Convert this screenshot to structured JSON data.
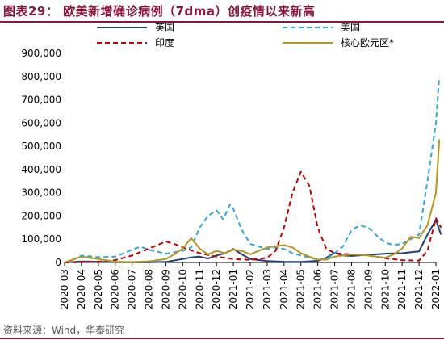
{
  "title": "图表29：   欧美新增确诊病例（7dma）创疫情以来新高",
  "source": "资料来源：Wind，华泰研究",
  "chart_data": {
    "type": "line",
    "x": [
      "2020-03",
      "2020-04",
      "2020-05",
      "2020-06",
      "2020-07",
      "2020-08",
      "2020-09",
      "2020-10",
      "2020-11",
      "2020-12",
      "2021-01",
      "2021-02",
      "2021-03",
      "2021-04",
      "2021-05",
      "2021-06",
      "2021-07",
      "2021-08",
      "2021-09",
      "2021-10",
      "2021-11",
      "2021-12",
      "2022-01"
    ],
    "ylim": [
      0,
      900000
    ],
    "yticks": [
      "0",
      "100,000",
      "200,000",
      "300,000",
      "400,000",
      "500,000",
      "600,000",
      "700,000",
      "800,000",
      "900,000"
    ],
    "grid": false,
    "legend_position": "top",
    "series": [
      {
        "name": "英国",
        "color": "#1f3e7a",
        "style": "solid",
        "points": [
          [
            0,
            0
          ],
          [
            1,
            4500
          ],
          [
            2,
            3000
          ],
          [
            3,
            1500
          ],
          [
            4,
            600
          ],
          [
            5,
            800
          ],
          [
            6,
            2500
          ],
          [
            7,
            15000
          ],
          [
            7.5,
            22000
          ],
          [
            8,
            25000
          ],
          [
            8.5,
            17000
          ],
          [
            9,
            30000
          ],
          [
            9.5,
            40000
          ],
          [
            10,
            58000
          ],
          [
            10.5,
            35000
          ],
          [
            11,
            15000
          ],
          [
            12,
            6000
          ],
          [
            13,
            3000
          ],
          [
            14,
            2500
          ],
          [
            15,
            7000
          ],
          [
            15.5,
            20000
          ],
          [
            16,
            42000
          ],
          [
            16.5,
            30000
          ],
          [
            17,
            28000
          ],
          [
            18,
            33000
          ],
          [
            19,
            38000
          ],
          [
            20,
            40000
          ],
          [
            21,
            48000
          ],
          [
            21.5,
            120000
          ],
          [
            22,
            183000
          ],
          [
            22.3,
            120000
          ]
        ]
      },
      {
        "name": "美国",
        "color": "#33a6d9",
        "style": "dashed",
        "points": [
          [
            0,
            1000
          ],
          [
            0.5,
            12000
          ],
          [
            1,
            30000
          ],
          [
            2,
            23000
          ],
          [
            3,
            25000
          ],
          [
            4,
            55000
          ],
          [
            4.5,
            68000
          ],
          [
            5,
            55000
          ],
          [
            6,
            38000
          ],
          [
            7,
            50000
          ],
          [
            7.5,
            65000
          ],
          [
            8,
            150000
          ],
          [
            8.5,
            200000
          ],
          [
            9,
            225000
          ],
          [
            9.4,
            185000
          ],
          [
            9.8,
            250000
          ],
          [
            10,
            230000
          ],
          [
            10.5,
            140000
          ],
          [
            11,
            80000
          ],
          [
            12,
            58000
          ],
          [
            12.5,
            65000
          ],
          [
            13,
            58000
          ],
          [
            13.5,
            40000
          ],
          [
            14,
            30000
          ],
          [
            15,
            12000
          ],
          [
            15.5,
            15000
          ],
          [
            16,
            40000
          ],
          [
            16.5,
            70000
          ],
          [
            17,
            140000
          ],
          [
            17.5,
            160000
          ],
          [
            18,
            150000
          ],
          [
            18.5,
            115000
          ],
          [
            19,
            85000
          ],
          [
            19.5,
            75000
          ],
          [
            20,
            80000
          ],
          [
            20.5,
            100000
          ],
          [
            21,
            120000
          ],
          [
            21.5,
            350000
          ],
          [
            22,
            600000
          ],
          [
            22.2,
            800000
          ]
        ]
      },
      {
        "name": "印度",
        "color": "#c00000",
        "style": "dashed",
        "points": [
          [
            0,
            0
          ],
          [
            1,
            1000
          ],
          [
            2,
            3000
          ],
          [
            3,
            10000
          ],
          [
            4,
            30000
          ],
          [
            5,
            60000
          ],
          [
            6,
            90000
          ],
          [
            6.5,
            80000
          ],
          [
            7,
            65000
          ],
          [
            8,
            40000
          ],
          [
            9,
            25000
          ],
          [
            10,
            15000
          ],
          [
            11,
            11000
          ],
          [
            12,
            20000
          ],
          [
            12.5,
            50000
          ],
          [
            13,
            150000
          ],
          [
            13.5,
            300000
          ],
          [
            14,
            390000
          ],
          [
            14.5,
            330000
          ],
          [
            15,
            150000
          ],
          [
            15.5,
            60000
          ],
          [
            16,
            40000
          ],
          [
            17,
            35000
          ],
          [
            18,
            30000
          ],
          [
            19,
            18000
          ],
          [
            20,
            10000
          ],
          [
            21,
            8000
          ],
          [
            21.5,
            50000
          ],
          [
            22,
            190000
          ],
          [
            22.3,
            150000
          ]
        ]
      },
      {
        "name": "核心欧元区*",
        "color": "#b8951e",
        "style": "solid",
        "points": [
          [
            0,
            0
          ],
          [
            1,
            25000
          ],
          [
            2,
            15000
          ],
          [
            3,
            3000
          ],
          [
            4,
            2000
          ],
          [
            5,
            5000
          ],
          [
            6,
            15000
          ],
          [
            6.5,
            35000
          ],
          [
            7,
            60000
          ],
          [
            7.5,
            105000
          ],
          [
            8,
            60000
          ],
          [
            8.5,
            35000
          ],
          [
            9,
            50000
          ],
          [
            9.5,
            40000
          ],
          [
            10,
            55000
          ],
          [
            10.5,
            50000
          ],
          [
            11,
            35000
          ],
          [
            12,
            65000
          ],
          [
            13,
            75000
          ],
          [
            13.5,
            65000
          ],
          [
            14,
            40000
          ],
          [
            14.5,
            25000
          ],
          [
            15,
            12000
          ],
          [
            15.5,
            12000
          ],
          [
            16,
            25000
          ],
          [
            17,
            35000
          ],
          [
            18,
            30000
          ],
          [
            19,
            20000
          ],
          [
            19.5,
            35000
          ],
          [
            20,
            60000
          ],
          [
            20.5,
            110000
          ],
          [
            21,
            105000
          ],
          [
            21.5,
            160000
          ],
          [
            22,
            300000
          ],
          [
            22.2,
            530000
          ]
        ]
      }
    ]
  }
}
